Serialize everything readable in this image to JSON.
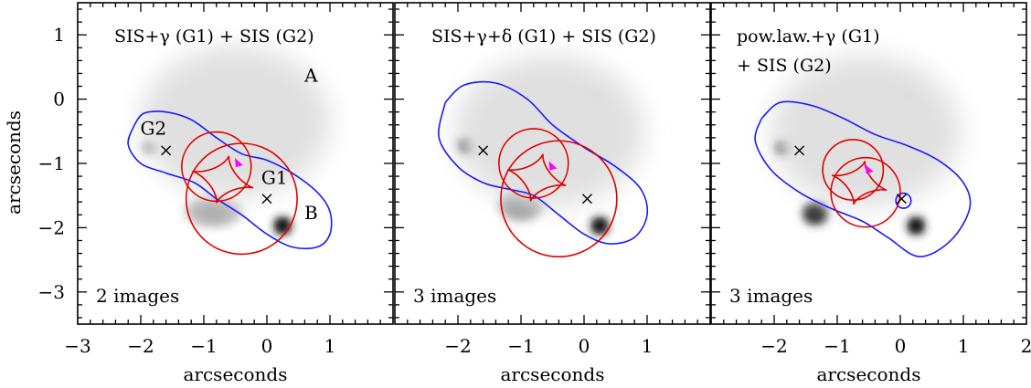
{
  "figure": {
    "y_axis_label": "arcseconds"
  },
  "chart_data": [
    {
      "type": "scatter",
      "title": "SIS+γ (G1) + SIS (G2)",
      "title_lines": [
        "SIS+γ (G1) + SIS (G2)"
      ],
      "caption": "2 images",
      "xlabel": "arcseconds",
      "ylabel": "arcseconds",
      "xlim": [
        -3.0,
        2.0
      ],
      "ylim": [
        -3.5,
        1.5
      ],
      "x_tick_labels": [
        "−3",
        "−2",
        "−1",
        "0",
        "1"
      ],
      "x_tick_values": [
        -3,
        -2,
        -1,
        0,
        1
      ],
      "y_tick_labels": [
        "1",
        "0",
        "−1",
        "−2",
        "−3"
      ],
      "y_tick_values": [
        1,
        0,
        -1,
        -2,
        -3
      ],
      "labels": [
        {
          "text": "A",
          "x": 0.7,
          "y": 0.27
        },
        {
          "text": "B",
          "x": 0.7,
          "y": -1.87
        },
        {
          "text": "G1",
          "x": 0.12,
          "y": -1.32
        },
        {
          "text": "G2",
          "x": -1.8,
          "y": -0.55
        }
      ],
      "galaxy_markers": [
        {
          "name": "G1",
          "x": 0.0,
          "y": -1.55
        },
        {
          "name": "G2",
          "x": -1.6,
          "y": -0.8
        }
      ],
      "source_position": {
        "x": -0.45,
        "y": -1.0
      },
      "images": [
        {
          "x": -0.05,
          "y": -0.03,
          "rx": 0.3,
          "ry": 0.13,
          "strength": 0.85
        },
        {
          "x": 0.25,
          "y": -1.97,
          "rx": 0.14,
          "ry": 0.14,
          "strength": 0.9
        },
        {
          "x": -1.85,
          "y": -0.75,
          "rx": 0.12,
          "ry": 0.1,
          "strength": 0.4
        },
        {
          "x": -0.85,
          "y": -1.75,
          "rx": 0.45,
          "ry": 0.25,
          "strength": 0.25
        },
        {
          "x": -0.5,
          "y": -0.35,
          "rx": 1.5,
          "ry": 1.2,
          "strength": 0.12
        }
      ],
      "critical_curve_color": "#1a1aff",
      "caustic_color": "#e00000",
      "source_color": "#ff00ff",
      "critical_curve": [
        [
          -2.1,
          -0.4
        ],
        [
          -1.95,
          -0.22
        ],
        [
          -1.6,
          -0.2
        ],
        [
          -1.2,
          -0.32
        ],
        [
          -0.8,
          -0.6
        ],
        [
          -0.4,
          -0.85
        ],
        [
          0.0,
          -0.95
        ],
        [
          0.4,
          -1.15
        ],
        [
          0.8,
          -1.45
        ],
        [
          1.0,
          -1.75
        ],
        [
          1.0,
          -2.1
        ],
        [
          0.8,
          -2.3
        ],
        [
          0.4,
          -2.3
        ],
        [
          0.0,
          -2.1
        ],
        [
          -0.4,
          -1.8
        ],
        [
          -0.8,
          -1.55
        ],
        [
          -1.15,
          -1.3
        ],
        [
          -1.6,
          -1.15
        ],
        [
          -2.0,
          -1.0
        ],
        [
          -2.2,
          -0.7
        ],
        [
          -2.1,
          -0.4
        ]
      ],
      "caustic_circles": [
        {
          "x": -0.8,
          "y": -1.05,
          "r": 0.55
        },
        {
          "x": -0.4,
          "y": -1.55,
          "r": 0.88
        }
      ],
      "astroid": {
        "x": -0.7,
        "y": -1.25,
        "rx": 0.5,
        "ry": 0.38,
        "rot": -15
      }
    },
    {
      "type": "scatter",
      "title": "SIS+γ+δ (G1) + SIS (G2)",
      "title_lines": [
        "SIS+γ+δ (G1) + SIS (G2)"
      ],
      "caption": "3 images",
      "xlabel": "arcseconds",
      "ylabel": "",
      "xlim": [
        -3.0,
        2.0
      ],
      "ylim": [
        -3.5,
        1.5
      ],
      "x_tick_labels": [
        "−2",
        "−1",
        "0",
        "1"
      ],
      "x_tick_values": [
        -2,
        -1,
        0,
        1
      ],
      "y_tick_labels": [],
      "y_tick_values": [],
      "labels": [],
      "galaxy_markers": [
        {
          "name": "G1",
          "x": 0.05,
          "y": -1.55
        },
        {
          "name": "G2",
          "x": -1.6,
          "y": -0.8
        }
      ],
      "source_position": {
        "x": -0.5,
        "y": -1.05
      },
      "images": [
        {
          "x": 0.0,
          "y": -0.03,
          "rx": 0.3,
          "ry": 0.13,
          "strength": 0.85
        },
        {
          "x": 0.25,
          "y": -1.97,
          "rx": 0.14,
          "ry": 0.14,
          "strength": 0.9
        },
        {
          "x": -1.85,
          "y": -0.72,
          "rx": 0.14,
          "ry": 0.12,
          "strength": 0.85
        },
        {
          "x": -1.0,
          "y": -1.65,
          "rx": 0.35,
          "ry": 0.25,
          "strength": 0.35
        },
        {
          "x": -0.55,
          "y": -0.5,
          "rx": 1.5,
          "ry": 1.2,
          "strength": 0.12
        }
      ],
      "critical_curve_color": "#1a1aff",
      "caustic_color": "#e00000",
      "source_color": "#ff00ff",
      "critical_curve": [
        [
          -2.2,
          -0.05
        ],
        [
          -1.9,
          0.22
        ],
        [
          -1.4,
          0.25
        ],
        [
          -0.9,
          0.0
        ],
        [
          -0.5,
          -0.4
        ],
        [
          0.0,
          -0.75
        ],
        [
          0.5,
          -1.05
        ],
        [
          0.9,
          -1.4
        ],
        [
          1.0,
          -1.8
        ],
        [
          0.8,
          -2.15
        ],
        [
          0.4,
          -2.25
        ],
        [
          0.0,
          -2.1
        ],
        [
          -0.4,
          -1.8
        ],
        [
          -0.8,
          -1.5
        ],
        [
          -1.2,
          -1.4
        ],
        [
          -1.6,
          -1.3
        ],
        [
          -2.0,
          -1.05
        ],
        [
          -2.3,
          -0.6
        ],
        [
          -2.2,
          -0.05
        ]
      ],
      "caustic_circles": [
        {
          "x": -0.8,
          "y": -1.0,
          "r": 0.55
        },
        {
          "x": -0.4,
          "y": -1.55,
          "r": 0.92
        }
      ],
      "astroid": {
        "x": -0.75,
        "y": -1.22,
        "rx": 0.48,
        "ry": 0.38,
        "rot": -15
      }
    },
    {
      "type": "scatter",
      "title": "pow.law.+γ (G1) + SIS (G2)",
      "title_lines": [
        "pow.law.+γ (G1)",
        "+ SIS (G2)"
      ],
      "caption": "3 images",
      "xlabel": "arcseconds",
      "ylabel": "",
      "xlim": [
        -3.0,
        2.0
      ],
      "ylim": [
        -3.5,
        1.5
      ],
      "x_tick_labels": [
        "−2",
        "−1",
        "0",
        "1",
        "2"
      ],
      "x_tick_values": [
        -2,
        -1,
        0,
        1,
        2
      ],
      "y_tick_labels": [],
      "y_tick_values": [],
      "labels": [],
      "galaxy_markers": [
        {
          "name": "G1",
          "x": 0.02,
          "y": -1.55
        },
        {
          "name": "G2",
          "x": -1.6,
          "y": -0.8
        }
      ],
      "source_position": {
        "x": -0.5,
        "y": -1.1
      },
      "images": [
        {
          "x": -0.05,
          "y": -0.03,
          "rx": 0.3,
          "ry": 0.13,
          "strength": 0.85
        },
        {
          "x": 0.25,
          "y": -1.97,
          "rx": 0.14,
          "ry": 0.14,
          "strength": 0.9
        },
        {
          "x": -1.85,
          "y": -0.75,
          "rx": 0.13,
          "ry": 0.11,
          "strength": 0.85
        },
        {
          "x": -1.35,
          "y": -1.78,
          "rx": 0.2,
          "ry": 0.18,
          "strength": 0.75
        },
        {
          "x": -0.55,
          "y": -0.5,
          "rx": 1.5,
          "ry": 1.2,
          "strength": 0.12
        }
      ],
      "critical_curve_color": "#1a1aff",
      "caustic_color": "#e00000",
      "source_color": "#ff00ff",
      "critical_curve": [
        [
          -2.2,
          -0.3
        ],
        [
          -1.9,
          -0.05
        ],
        [
          -1.4,
          -0.1
        ],
        [
          -0.9,
          -0.3
        ],
        [
          -0.4,
          -0.55
        ],
        [
          0.1,
          -0.72
        ],
        [
          0.6,
          -0.95
        ],
        [
          1.0,
          -1.3
        ],
        [
          1.1,
          -1.7
        ],
        [
          0.8,
          -2.2
        ],
        [
          0.3,
          -2.45
        ],
        [
          -0.2,
          -2.15
        ],
        [
          -0.6,
          -1.9
        ],
        [
          -1.1,
          -1.7
        ],
        [
          -1.6,
          -1.45
        ],
        [
          -2.05,
          -1.1
        ],
        [
          -2.3,
          -0.65
        ],
        [
          -2.2,
          -0.3
        ]
      ],
      "inner_critical": {
        "x": 0.05,
        "y": -1.58,
        "rx": 0.12,
        "ry": 0.12
      },
      "caustic_circles": [
        {
          "x": -0.75,
          "y": -1.1,
          "r": 0.48
        },
        {
          "x": -0.55,
          "y": -1.45,
          "r": 0.55
        }
      ],
      "astroid": {
        "x": -0.65,
        "y": -1.3,
        "rx": 0.45,
        "ry": 0.35,
        "rot": -15
      }
    }
  ]
}
